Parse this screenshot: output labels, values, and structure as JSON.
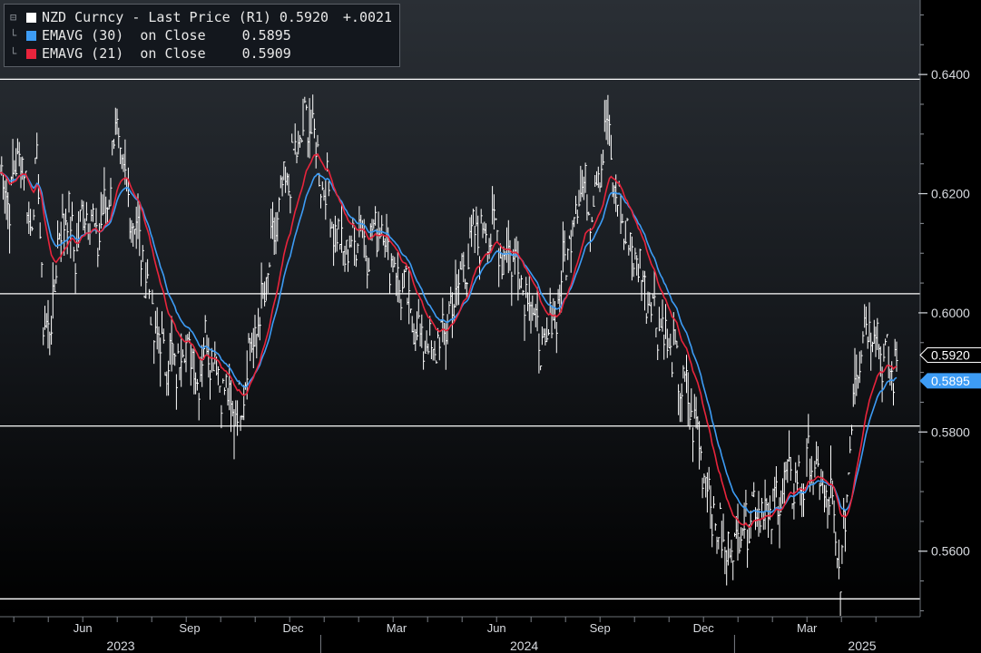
{
  "chart_data": {
    "type": "line",
    "legend": {
      "placement": "top-left",
      "entries": [
        {
          "label": "NZD Curncy - Last Price (R1)",
          "value": "0.5920",
          "change": "+.0021",
          "color": "#ffffff"
        },
        {
          "label": "EMAVG (30)  on Close",
          "value": "0.5895",
          "color": "#3d9cf5"
        },
        {
          "label": "EMAVG (21)  on Close",
          "value": "0.5909",
          "color": "#e8243c"
        }
      ]
    },
    "y_axis": {
      "side": "right",
      "ylim": [
        0.549,
        0.6525
      ],
      "ticks": [
        "0.6400",
        "0.6200",
        "0.6000",
        "0.5800",
        "0.5600"
      ],
      "tick_values": [
        0.64,
        0.62,
        0.6,
        0.58,
        0.56
      ]
    },
    "x_axis": {
      "months": [
        "Jun",
        "Sep",
        "Dec",
        "Mar",
        "Jun",
        "Sep",
        "Dec",
        "Mar"
      ],
      "month_positions": [
        5.0,
        8.1,
        11.1,
        14.1,
        17.0,
        20.0,
        23.0,
        26.0
      ],
      "years": [
        "2023",
        "2024",
        "2025"
      ],
      "year_positions": [
        6.1,
        17.8,
        27.6
      ],
      "year_boundaries": [
        11.9,
        23.9
      ],
      "range": [
        2.6,
        28.6
      ]
    },
    "horizontal_lines": [
      0.6392,
      0.6032,
      0.581,
      0.552
    ],
    "price_anchors": [
      [
        2.6,
        0.6235
      ],
      [
        2.9,
        0.619
      ],
      [
        3.2,
        0.6285
      ],
      [
        3.45,
        0.615
      ],
      [
        3.7,
        0.624
      ],
      [
        3.85,
        0.6
      ],
      [
        4.0,
        0.595
      ],
      [
        4.3,
        0.612
      ],
      [
        4.5,
        0.618
      ],
      [
        4.8,
        0.61
      ],
      [
        5.1,
        0.619
      ],
      [
        5.4,
        0.612
      ],
      [
        5.7,
        0.618
      ],
      [
        5.95,
        0.632
      ],
      [
        6.2,
        0.621
      ],
      [
        6.5,
        0.616
      ],
      [
        6.8,
        0.607
      ],
      [
        7.1,
        0.596
      ],
      [
        7.4,
        0.593
      ],
      [
        7.7,
        0.591
      ],
      [
        8.0,
        0.596
      ],
      [
        8.3,
        0.589
      ],
      [
        8.6,
        0.596
      ],
      [
        8.95,
        0.59
      ],
      [
        9.2,
        0.585
      ],
      [
        9.5,
        0.583
      ],
      [
        9.8,
        0.593
      ],
      [
        10.1,
        0.598
      ],
      [
        10.4,
        0.607
      ],
      [
        10.7,
        0.618
      ],
      [
        11.0,
        0.623
      ],
      [
        11.3,
        0.629
      ],
      [
        11.6,
        0.633
      ],
      [
        11.85,
        0.624
      ],
      [
        12.1,
        0.62
      ],
      [
        12.4,
        0.612
      ],
      [
        12.7,
        0.61
      ],
      [
        13.0,
        0.615
      ],
      [
        13.3,
        0.611
      ],
      [
        13.6,
        0.616
      ],
      [
        13.9,
        0.61
      ],
      [
        14.2,
        0.605
      ],
      [
        14.5,
        0.6
      ],
      [
        14.7,
        0.597
      ],
      [
        14.9,
        0.595
      ],
      [
        15.2,
        0.593
      ],
      [
        15.4,
        0.596
      ],
      [
        15.7,
        0.601
      ],
      [
        16.0,
        0.607
      ],
      [
        16.3,
        0.612
      ],
      [
        16.6,
        0.614
      ],
      [
        16.9,
        0.614
      ],
      [
        17.2,
        0.61
      ],
      [
        17.5,
        0.61
      ],
      [
        17.8,
        0.605
      ],
      [
        18.1,
        0.6
      ],
      [
        18.3,
        0.592
      ],
      [
        18.5,
        0.596
      ],
      [
        18.8,
        0.603
      ],
      [
        19.1,
        0.612
      ],
      [
        19.4,
        0.622
      ],
      [
        19.7,
        0.618
      ],
      [
        20.0,
        0.625
      ],
      [
        20.2,
        0.632
      ],
      [
        20.4,
        0.621
      ],
      [
        20.7,
        0.614
      ],
      [
        21.0,
        0.61
      ],
      [
        21.3,
        0.605
      ],
      [
        21.6,
        0.6
      ],
      [
        21.9,
        0.596
      ],
      [
        22.2,
        0.591
      ],
      [
        22.5,
        0.586
      ],
      [
        22.8,
        0.58
      ],
      [
        23.1,
        0.572
      ],
      [
        23.4,
        0.563
      ],
      [
        23.7,
        0.56
      ],
      [
        24.0,
        0.563
      ],
      [
        24.3,
        0.566
      ],
      [
        24.6,
        0.569
      ],
      [
        24.9,
        0.565
      ],
      [
        25.2,
        0.57
      ],
      [
        25.5,
        0.572
      ],
      [
        25.8,
        0.571
      ],
      [
        26.1,
        0.575
      ],
      [
        26.4,
        0.571
      ],
      [
        26.7,
        0.568
      ],
      [
        26.85,
        0.56
      ],
      [
        27.0,
        0.555
      ],
      [
        27.2,
        0.575
      ],
      [
        27.4,
        0.59
      ],
      [
        27.6,
        0.597
      ],
      [
        27.9,
        0.599
      ],
      [
        28.2,
        0.593
      ],
      [
        28.4,
        0.59
      ],
      [
        28.6,
        0.592
      ]
    ],
    "price_last": 0.592,
    "ema30_last": 0.5895,
    "ema21_last": 0.5909,
    "colors": {
      "background": "#000000",
      "plot_top": "#2a2f35",
      "price": "#ffffff",
      "ema30": "#3d9cf5",
      "ema21": "#e8243c",
      "grid": "#ffffff"
    }
  }
}
